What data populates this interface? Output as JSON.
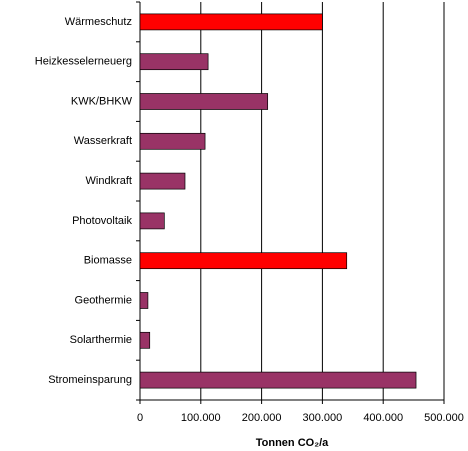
{
  "chart_data": {
    "type": "bar",
    "orientation": "horizontal",
    "x_label": "Tonnen CO₂/a",
    "categories": [
      "Wärmeschutz",
      "Heizkesselerneuerg",
      "KWK/BHKW",
      "Wasserkraft",
      "Windkraft",
      "Photovoltaik",
      "Biomasse",
      "Geothermie",
      "Solarthermie",
      "Stromeinsparung"
    ],
    "values": [
      300000,
      112000,
      210000,
      107000,
      74000,
      40000,
      340000,
      13000,
      16000,
      454000
    ],
    "colors": [
      "#ff0000",
      "#993366",
      "#993366",
      "#993366",
      "#993366",
      "#993366",
      "#ff0000",
      "#993366",
      "#993366",
      "#993366"
    ],
    "xlim": [
      0,
      500000
    ],
    "xticks": [
      0,
      {
        "value": 100000,
        "label": "100.000"
      },
      {
        "value": 200000,
        "label": "200.000"
      },
      {
        "value": 300000,
        "label": "300.000"
      },
      {
        "value": 400000,
        "label": "400.000"
      },
      {
        "value": 500000,
        "label": "500.000"
      }
    ],
    "grid": true
  }
}
